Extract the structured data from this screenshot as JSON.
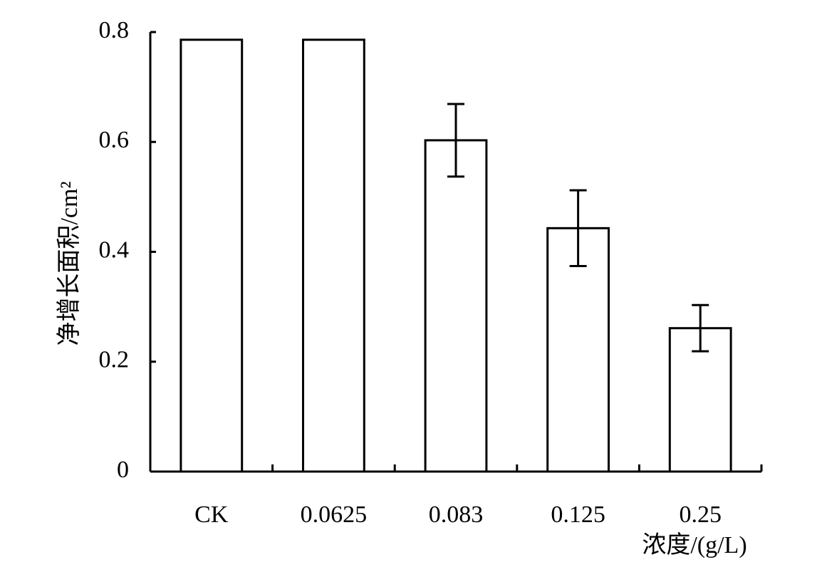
{
  "chart_data": {
    "type": "bar",
    "y_label": "净增长面积/cm²",
    "x_label": "浓度/(g/L)",
    "categories": [
      "CK",
      "0.0625",
      "0.083",
      "0.125",
      "0.25"
    ],
    "values": [
      0.786,
      0.786,
      0.603,
      0.443,
      0.261
    ],
    "errors": [
      null,
      null,
      0.066,
      0.069,
      0.042
    ],
    "color": "#ffffff",
    "ylim": [
      0,
      0.8
    ],
    "yticks": [
      0,
      0.2,
      0.4,
      0.6,
      0.8
    ],
    "grid": false
  }
}
